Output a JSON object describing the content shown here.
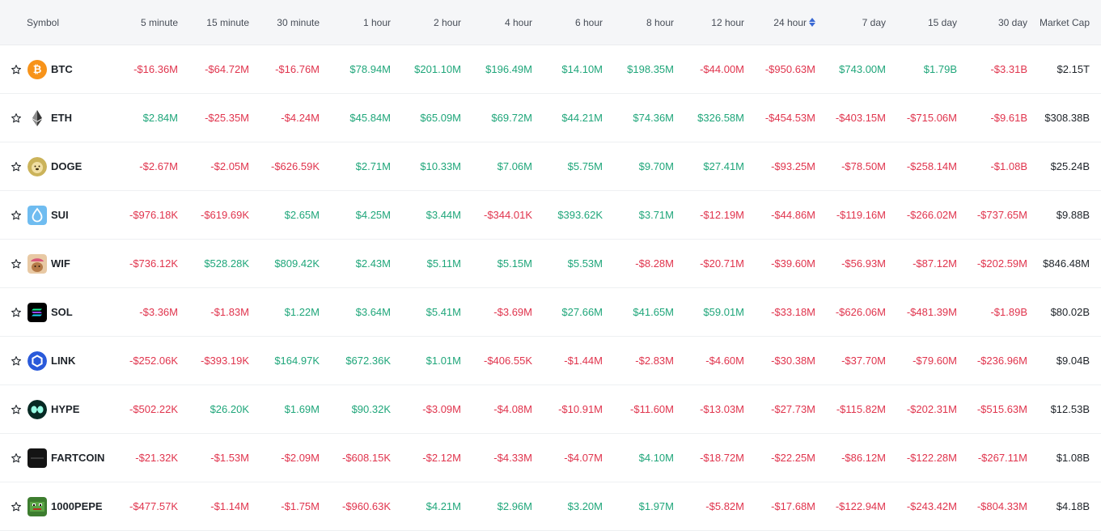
{
  "columns": {
    "symbol": "Symbol",
    "m5": "5 minute",
    "m15": "15 minute",
    "m30": "30 minute",
    "h1": "1 hour",
    "h2": "2 hour",
    "h4": "4 hour",
    "h6": "6 hour",
    "h8": "8 hour",
    "h12": "12 hour",
    "h24": "24 hour",
    "d7": "7 day",
    "d15": "15 day",
    "d30": "30 day",
    "market_cap": "Market Cap"
  },
  "colors": {
    "positive": "#1fa67a",
    "negative": "#e0344d",
    "sort_accent": "#3a69d4"
  },
  "rows": [
    {
      "symbol": "BTC",
      "icon": "bitcoin-icon",
      "m5": "-$16.36M",
      "m15": "-$64.72M",
      "m30": "-$16.76M",
      "h1": "$78.94M",
      "h2": "$201.10M",
      "h4": "$196.49M",
      "h6": "$14.10M",
      "h8": "$198.35M",
      "h12": "-$44.00M",
      "h24": "-$950.63M",
      "d7": "$743.00M",
      "d15": "$1.79B",
      "d30": "-$3.31B",
      "market_cap": "$2.15T"
    },
    {
      "symbol": "ETH",
      "icon": "ethereum-icon",
      "m5": "$2.84M",
      "m15": "-$25.35M",
      "m30": "-$4.24M",
      "h1": "$45.84M",
      "h2": "$65.09M",
      "h4": "$69.72M",
      "h6": "$44.21M",
      "h8": "$74.36M",
      "h12": "$326.58M",
      "h24": "-$454.53M",
      "d7": "-$403.15M",
      "d15": "-$715.06M",
      "d30": "-$9.61B",
      "market_cap": "$308.38B"
    },
    {
      "symbol": "DOGE",
      "icon": "dogecoin-icon",
      "m5": "-$2.67M",
      "m15": "-$2.05M",
      "m30": "-$626.59K",
      "h1": "$2.71M",
      "h2": "$10.33M",
      "h4": "$7.06M",
      "h6": "$5.75M",
      "h8": "$9.70M",
      "h12": "$27.41M",
      "h24": "-$93.25M",
      "d7": "-$78.50M",
      "d15": "-$258.14M",
      "d30": "-$1.08B",
      "market_cap": "$25.24B"
    },
    {
      "symbol": "SUI",
      "icon": "sui-droplet-icon",
      "m5": "-$976.18K",
      "m15": "-$619.69K",
      "m30": "$2.65M",
      "h1": "$4.25M",
      "h2": "$3.44M",
      "h4": "-$344.01K",
      "h6": "$393.62K",
      "h8": "$3.71M",
      "h12": "-$12.19M",
      "h24": "-$44.86M",
      "d7": "-$119.16M",
      "d15": "-$266.02M",
      "d30": "-$737.65M",
      "market_cap": "$9.88B"
    },
    {
      "symbol": "WIF",
      "icon": "dog-wif-hat-icon",
      "m5": "-$736.12K",
      "m15": "$528.28K",
      "m30": "$809.42K",
      "h1": "$2.43M",
      "h2": "$5.11M",
      "h4": "$5.15M",
      "h6": "$5.53M",
      "h8": "-$8.28M",
      "h12": "-$20.71M",
      "h24": "-$39.60M",
      "d7": "-$56.93M",
      "d15": "-$87.12M",
      "d30": "-$202.59M",
      "market_cap": "$846.48M"
    },
    {
      "symbol": "SOL",
      "icon": "solana-icon",
      "m5": "-$3.36M",
      "m15": "-$1.83M",
      "m30": "$1.22M",
      "h1": "$3.64M",
      "h2": "$5.41M",
      "h4": "-$3.69M",
      "h6": "$27.66M",
      "h8": "$41.65M",
      "h12": "$59.01M",
      "h24": "-$33.18M",
      "d7": "-$626.06M",
      "d15": "-$481.39M",
      "d30": "-$1.89B",
      "market_cap": "$80.02B"
    },
    {
      "symbol": "LINK",
      "icon": "chainlink-icon",
      "m5": "-$252.06K",
      "m15": "-$393.19K",
      "m30": "$164.97K",
      "h1": "$672.36K",
      "h2": "$1.01M",
      "h4": "-$406.55K",
      "h6": "-$1.44M",
      "h8": "-$2.83M",
      "h12": "-$4.60M",
      "h24": "-$30.38M",
      "d7": "-$37.70M",
      "d15": "-$79.60M",
      "d30": "-$236.96M",
      "market_cap": "$9.04B"
    },
    {
      "symbol": "HYPE",
      "icon": "hyperliquid-icon",
      "m5": "-$502.22K",
      "m15": "$26.20K",
      "m30": "$1.69M",
      "h1": "$90.32K",
      "h2": "-$3.09M",
      "h4": "-$4.08M",
      "h6": "-$10.91M",
      "h8": "-$11.60M",
      "h12": "-$13.03M",
      "h24": "-$27.73M",
      "d7": "-$115.82M",
      "d15": "-$202.31M",
      "d30": "-$515.63M",
      "market_cap": "$12.53B"
    },
    {
      "symbol": "FARTCOIN",
      "icon": "fartcoin-icon",
      "m5": "-$21.32K",
      "m15": "-$1.53M",
      "m30": "-$2.09M",
      "h1": "-$608.15K",
      "h2": "-$2.12M",
      "h4": "-$4.33M",
      "h6": "-$4.07M",
      "h8": "$4.10M",
      "h12": "-$18.72M",
      "h24": "-$22.25M",
      "d7": "-$86.12M",
      "d15": "-$122.28M",
      "d30": "-$267.11M",
      "market_cap": "$1.08B"
    },
    {
      "symbol": "1000PEPE",
      "icon": "pepe-frog-icon",
      "m5": "-$477.57K",
      "m15": "-$1.14M",
      "m30": "-$1.75M",
      "h1": "-$960.63K",
      "h2": "$4.21M",
      "h4": "$2.96M",
      "h6": "$3.20M",
      "h8": "$1.97M",
      "h12": "-$5.82M",
      "h24": "-$17.68M",
      "d7": "-$122.94M",
      "d15": "-$243.42M",
      "d30": "-$804.33M",
      "market_cap": "$4.18B"
    }
  ]
}
